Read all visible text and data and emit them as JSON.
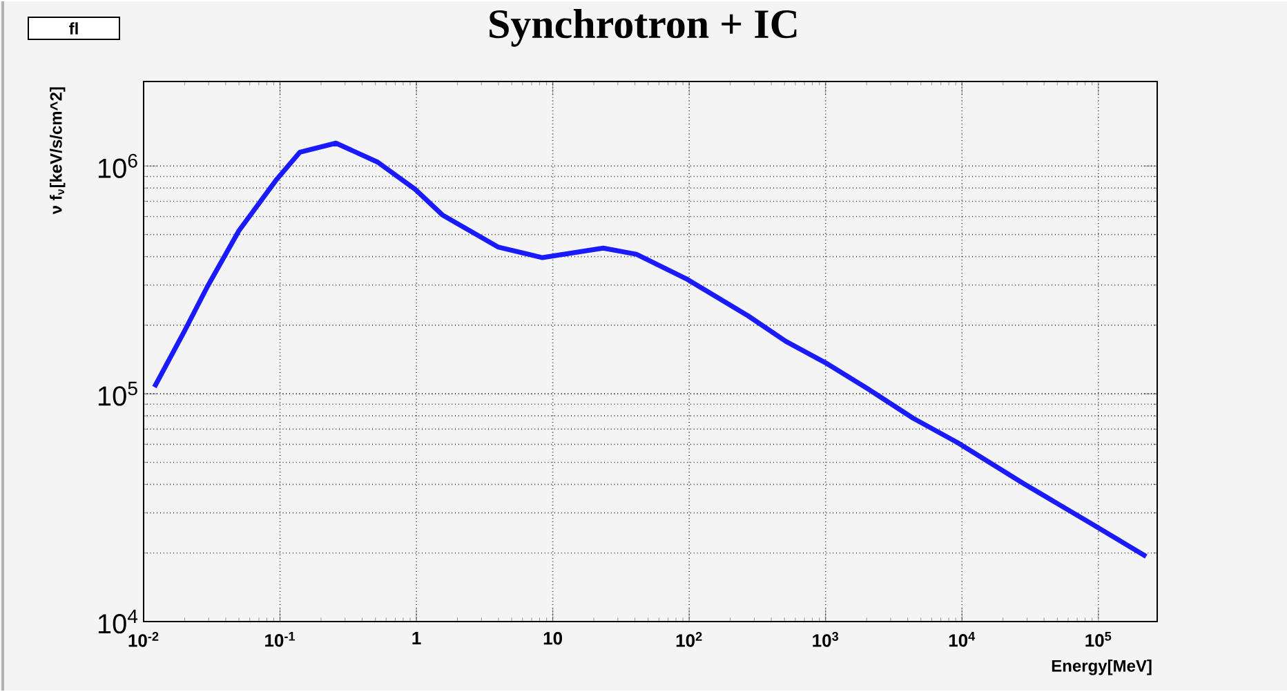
{
  "chart_data": {
    "type": "line",
    "title": "Synchrotron + IC",
    "xlabel": "Energy[MeV]",
    "ylabel": "ν f$_{ν}$[keV/s/cm^2]",
    "annotations": [
      "fl"
    ],
    "log": "xy",
    "grid": true,
    "line_style": "solid",
    "marker": "none",
    "color": "#1a1aff",
    "xlim": [
      0.01,
      270000
    ],
    "ylim": [
      10000,
      2350000
    ],
    "xticks": [
      {
        "value": 0.01,
        "label": "10$^{-2}$"
      },
      {
        "value": 0.1,
        "label": "10$^{-1}$"
      },
      1,
      10,
      {
        "value": 100,
        "label": "10$^{2}$"
      },
      {
        "value": 1000,
        "label": "10$^{3}$"
      },
      {
        "value": 10000,
        "label": "10$^{4}$"
      },
      {
        "value": 100000,
        "label": "10$^{5}$"
      }
    ],
    "yticks": [
      {
        "value": 10000,
        "label": "10$^{4}$"
      },
      {
        "value": 100000,
        "label": "10$^{5}$"
      },
      {
        "value": 1000000,
        "label": "10$^{6}$"
      }
    ],
    "x": [
      0.012,
      0.0197,
      0.0293,
      0.05,
      0.094,
      0.14,
      0.257,
      0.52,
      0.98,
      1.55,
      4.0,
      8.4,
      23.4,
      41,
      95,
      270,
      510,
      995,
      2100,
      4400,
      9300,
      29000,
      88000,
      224000
    ],
    "values": [
      107000,
      186000,
      295000,
      520000,
      870000,
      1150000,
      1260000,
      1040000,
      790000,
      610000,
      440000,
      396000,
      436000,
      410000,
      320000,
      220000,
      170000,
      137000,
      104000,
      78000,
      61000,
      40000,
      27000,
      19300
    ]
  }
}
